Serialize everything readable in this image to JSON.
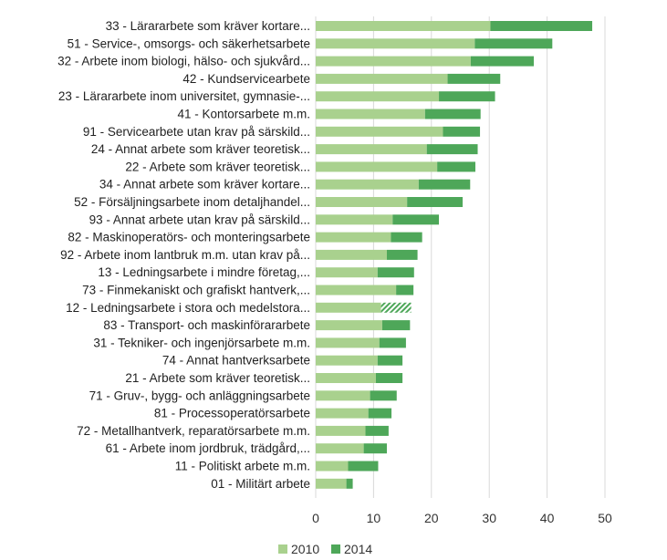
{
  "colors": {
    "series_2010": "#a9d18e",
    "series_2014": "#4ea759",
    "grid": "#d9d9d9"
  },
  "chart_data": {
    "type": "bar",
    "orientation": "horizontal",
    "stacked": true,
    "categories": [
      "33 - Lärararbete som kräver kortare...",
      "51 - Service-, omsorgs- och säkerhetsarbete",
      "32 - Arbete inom biologi, hälso- och sjukvård...",
      "42 - Kundservicearbete",
      "23 - Lärararbete inom universitet, gymnasie-...",
      "41 - Kontorsarbete m.m.",
      "91 - Servicearbete utan krav på särskild...",
      "24 - Annat arbete som kräver teoretisk...",
      "22 - Arbete som kräver teoretisk...",
      "34 - Annat arbete som kräver kortare...",
      "52 - Försäljningsarbete inom detaljhandel...",
      "93 - Annat arbete utan krav på särskild...",
      "82 - Maskinoperatörs- och monteringsarbete",
      "92 - Arbete inom lantbruk m.m. utan krav på...",
      "13 - Ledningsarbete i mindre företag,...",
      "73 - Finmekaniskt och grafiskt hantverk,...",
      "12 - Ledningsarbete i stora och medelstora...",
      "83 - Transport- och maskinförararbete",
      "31 - Tekniker- och ingenjörsarbete m.m.",
      "74 - Annat hantverksarbete",
      "21 - Arbete som kräver teoretisk...",
      "71 - Gruv-, bygg- och anläggningsarbete",
      "81 - Processoperatörsarbete",
      "72 - Metallhantverk, reparatörsarbete m.m.",
      "61 - Arbete inom jordbruk, trädgård,...",
      "11 - Politiskt arbete m.m.",
      "01 - Militärt arbete"
    ],
    "series": [
      {
        "name": "2010",
        "values": [
          30.2,
          27.5,
          26.8,
          22.8,
          21.3,
          18.9,
          22.0,
          19.2,
          21.0,
          17.8,
          15.8,
          13.3,
          13.0,
          12.3,
          10.7,
          13.9,
          11.3,
          11.5,
          11.0,
          10.7,
          10.4,
          9.4,
          9.1,
          8.6,
          8.3,
          5.6,
          5.3
        ]
      },
      {
        "name": "2014",
        "values": [
          17.6,
          13.4,
          10.9,
          9.1,
          9.7,
          9.6,
          6.4,
          8.8,
          6.6,
          8.9,
          9.6,
          8.0,
          5.4,
          5.3,
          6.3,
          3.0,
          5.2,
          4.8,
          4.6,
          4.3,
          4.6,
          4.6,
          4.0,
          4.0,
          4.0,
          5.2,
          1.1
        ]
      }
    ],
    "hatched_2014_categories": [
      "12 - Ledningsarbete i stora och medelstora..."
    ],
    "x_ticks": [
      0,
      10,
      20,
      30,
      40,
      50
    ],
    "xlim": [
      0,
      50
    ],
    "grid": "vertical",
    "legend_position": "bottom-center",
    "title": "",
    "xlabel": "",
    "ylabel": ""
  }
}
